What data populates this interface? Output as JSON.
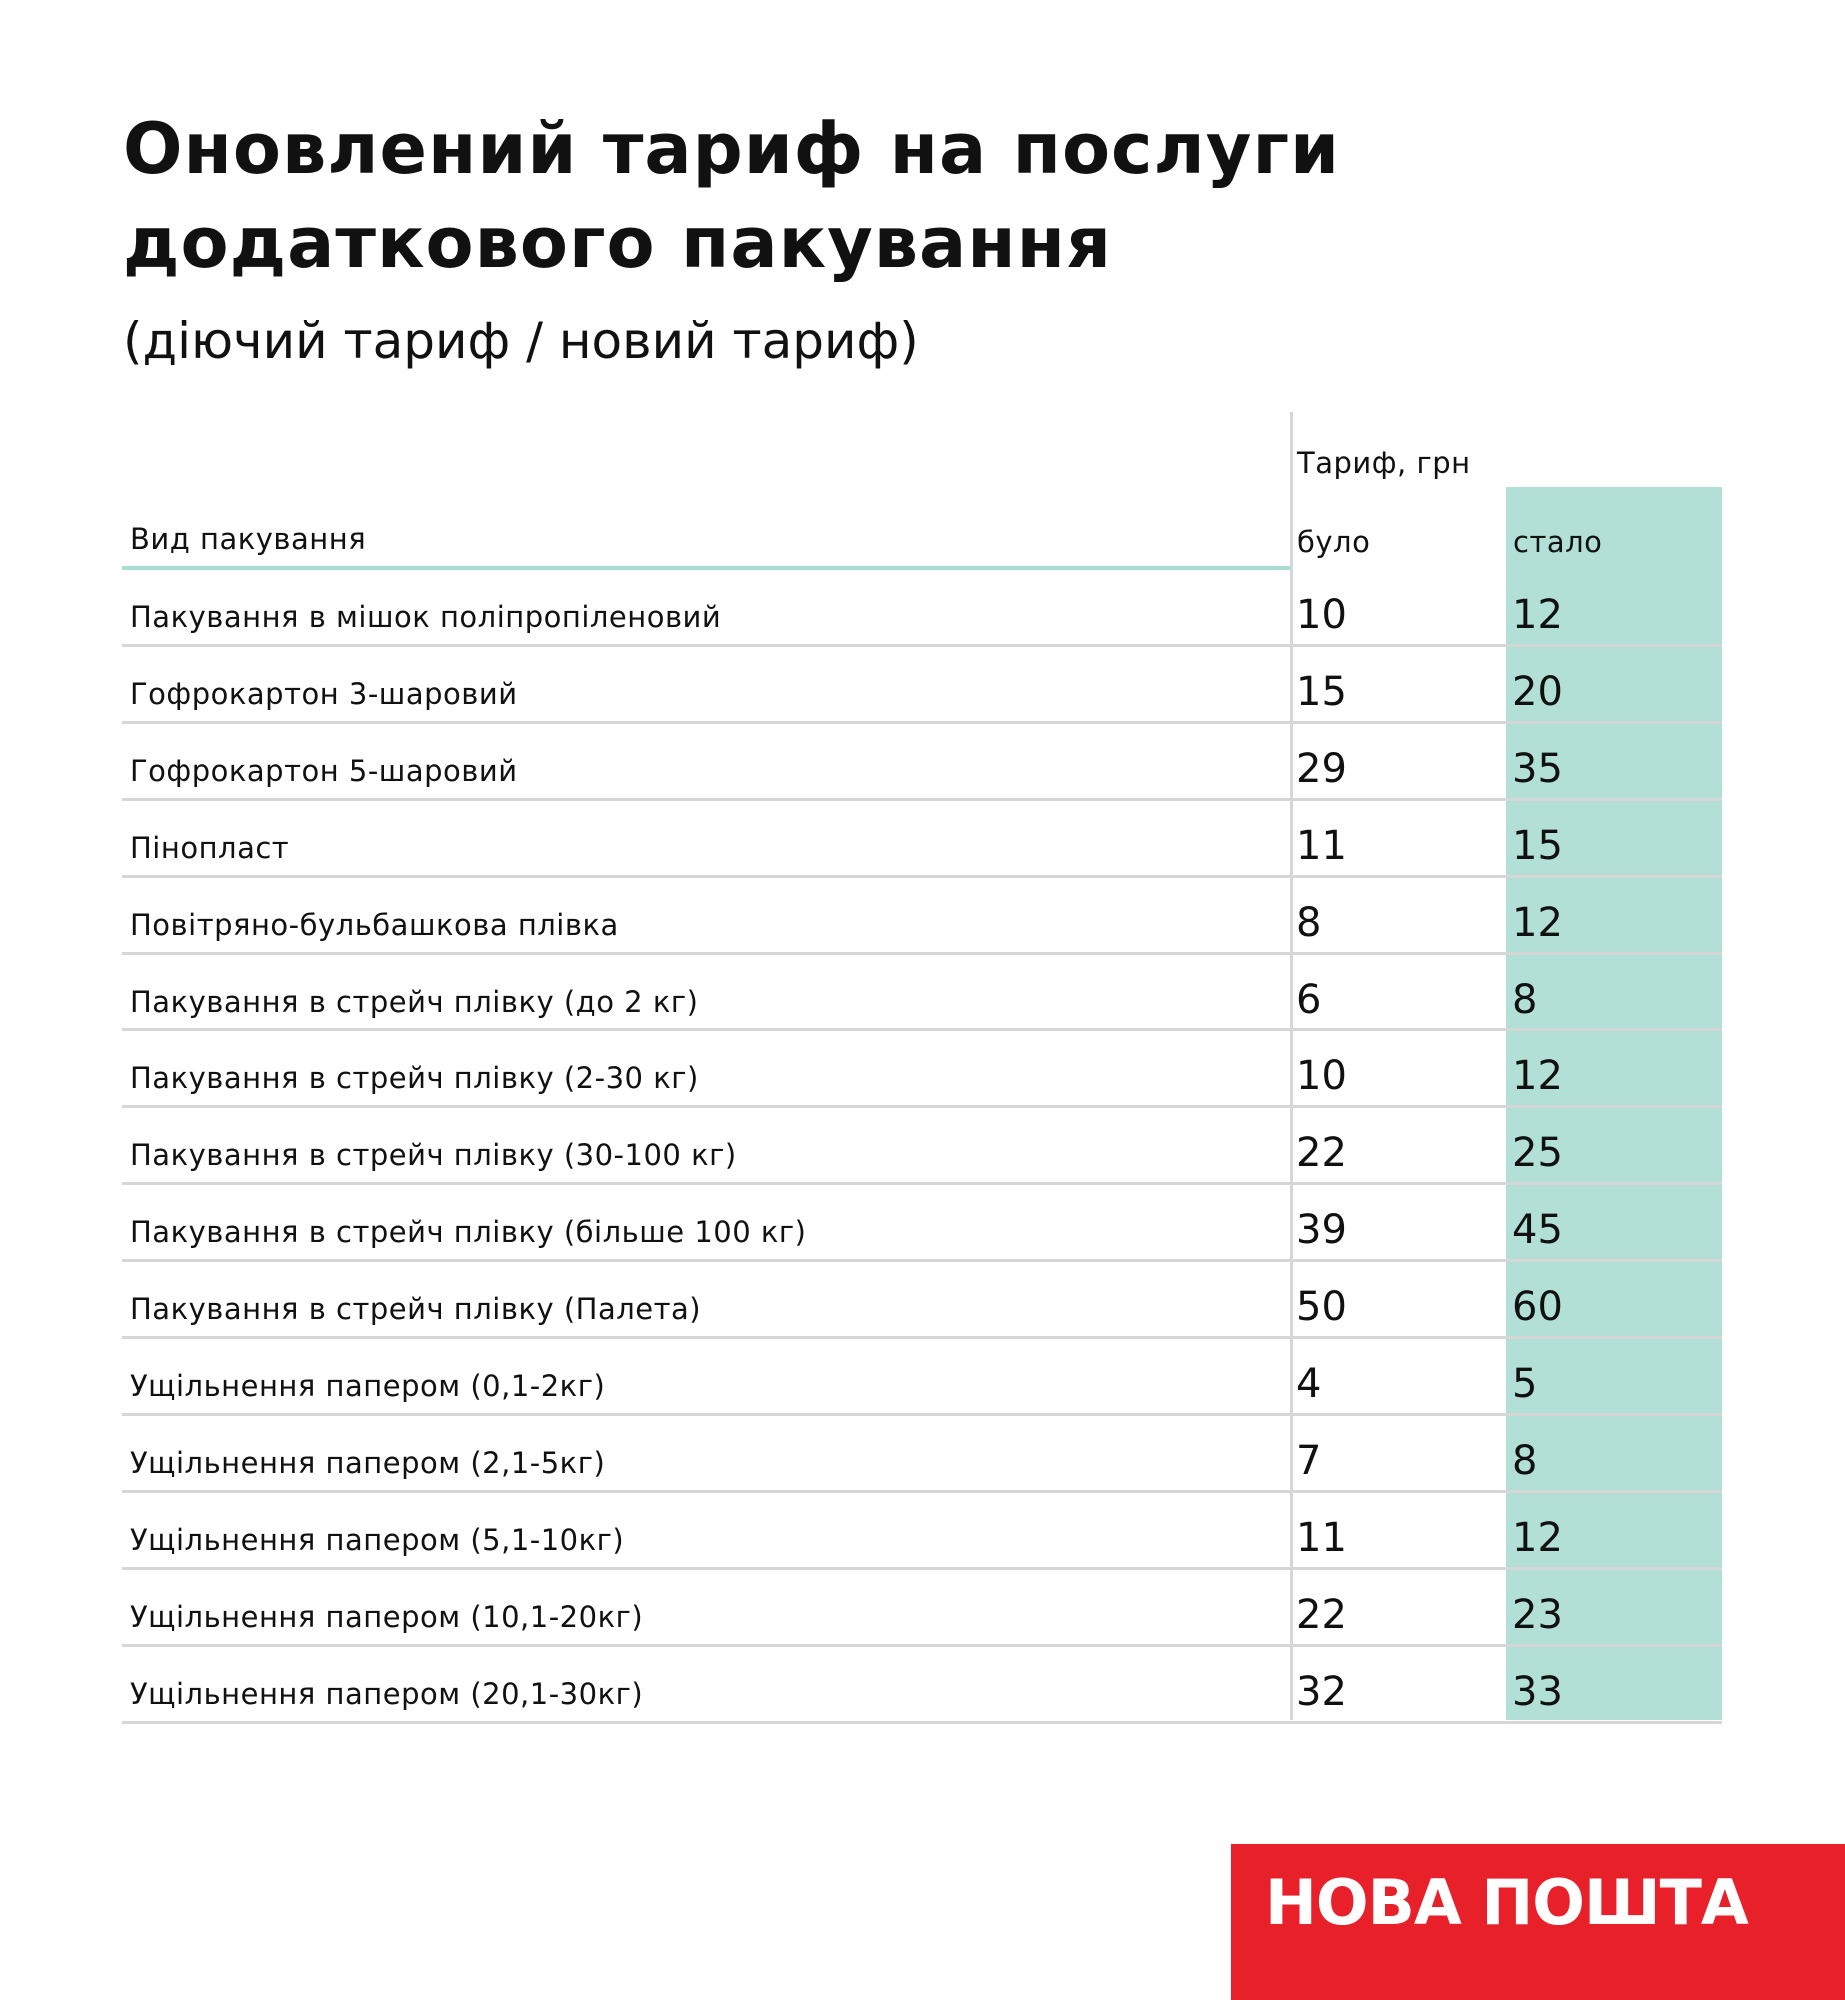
{
  "header": {
    "title_lines": [
      "Оновлений тариф на послуги",
      "додаткового пакування"
    ],
    "subtitle": "(діючий тариф / новий тариф)"
  },
  "table": {
    "group_header": "Тариф, грн",
    "columns": [
      "Вид пакування",
      "було",
      "стало"
    ],
    "rows": [
      [
        "Пакування в мішок поліпропіленовий",
        10,
        12
      ],
      [
        "Гофрокартон 3-шаровий",
        15,
        20
      ],
      [
        "Гофрокартон 5-шаровий",
        29,
        35
      ],
      [
        "Пінопласт",
        11,
        15
      ],
      [
        "Повітряно-бульбашкова плівка",
        8,
        12
      ],
      [
        "Пакування в стрейч плівку (до 2 кг)",
        6,
        8
      ],
      [
        "Пакування в стрейч плівку (2-30 кг)",
        10,
        12
      ],
      [
        "Пакування в стрейч плівку (30-100 кг)",
        22,
        25
      ],
      [
        "Пакування в стрейч плівку (більше 100 кг)",
        39,
        45
      ],
      [
        "Пакування в стрейч плівку (Палета)",
        50,
        60
      ],
      [
        "Ущільнення папером (0,1-2кг)",
        4,
        5
      ],
      [
        "Ущільнення папером (2,1-5кг)",
        7,
        8
      ],
      [
        "Ущільнення папером (5,1-10кг)",
        11,
        12
      ],
      [
        "Ущільнення папером (10,1-20кг)",
        22,
        23
      ],
      [
        "Ущільнення папером (20,1-30кг)",
        32,
        33
      ]
    ]
  },
  "logo": {
    "text": "НОВА ПОШТА"
  }
}
